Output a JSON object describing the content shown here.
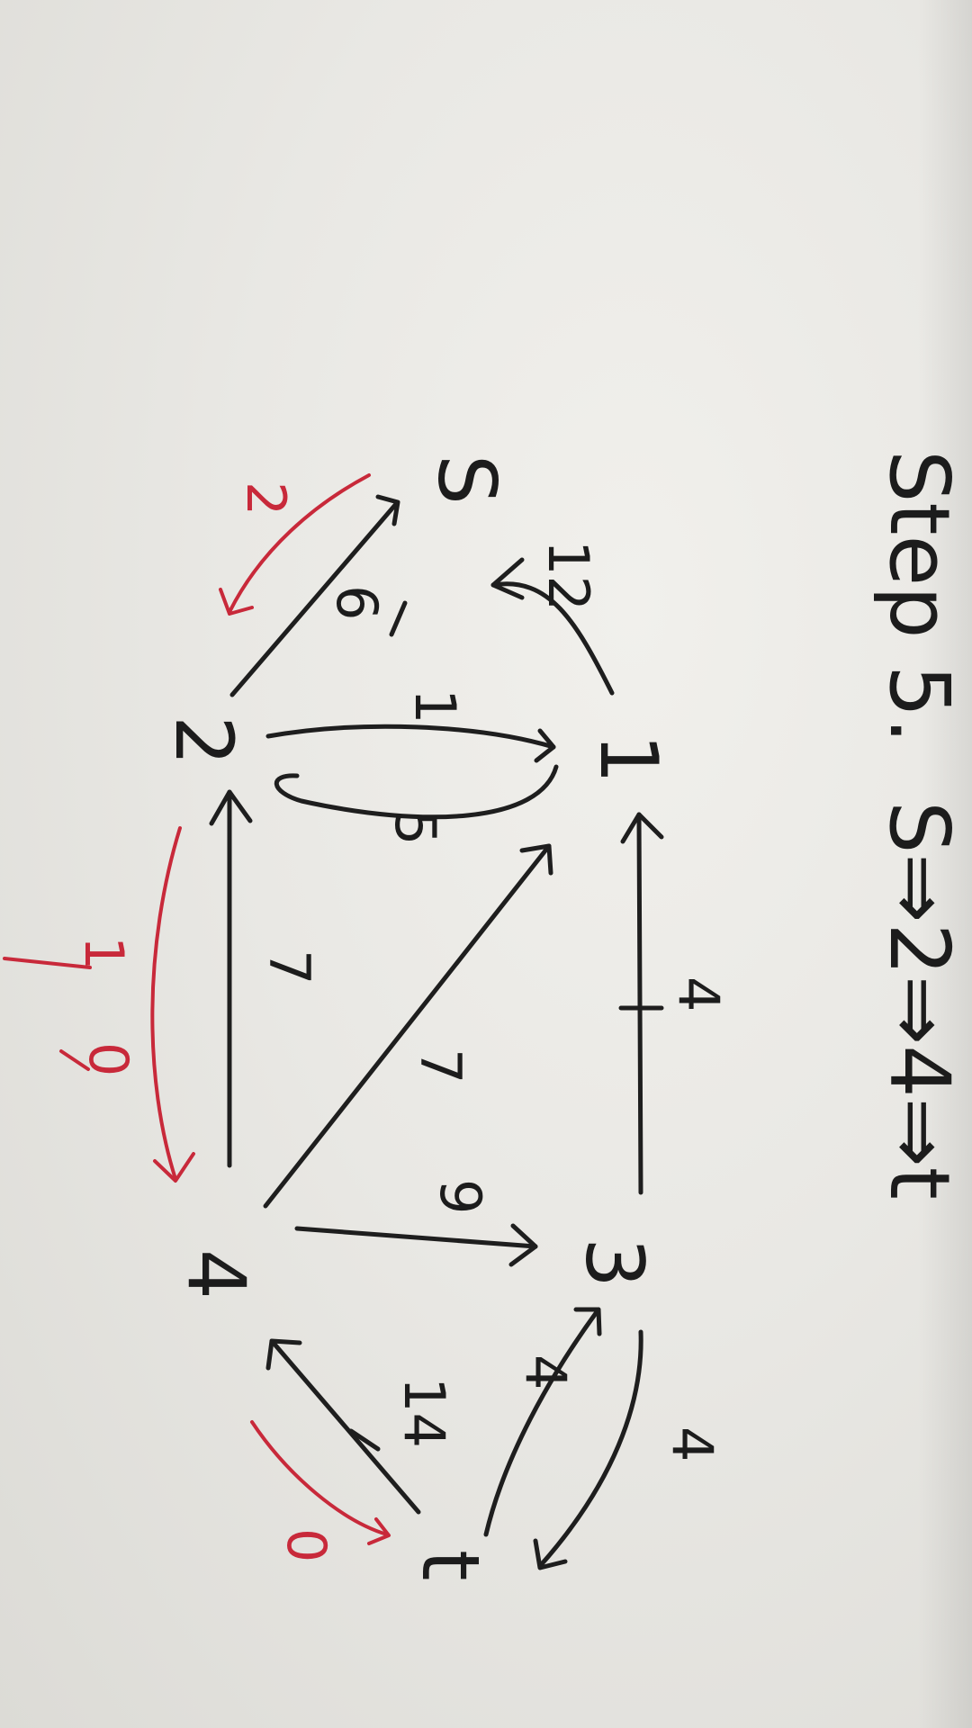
{
  "heading": {
    "step_label": "Step 5.",
    "path": "S⇒2⇒4⇒t"
  },
  "nodes": {
    "s": "S",
    "n1": "1",
    "n2": "2",
    "n3": "3",
    "n4": "4",
    "t": "t"
  },
  "edge_weights": {
    "s_1": "12",
    "s_2": "6",
    "n2_1_upper": "1",
    "n1_2_lower": "5",
    "n1_3": "4",
    "n2_4": "7",
    "n1_4_diagonal": "7",
    "n4_3": "9",
    "n3_t_upper": "4",
    "n3_t_lower": "4",
    "n4_t": "14"
  },
  "flow_annotations": {
    "s_2": "2",
    "n2_4": "1",
    "n2_4_crossed": "0",
    "n4_t": "0"
  },
  "colors": {
    "ink": "#1c1c1c",
    "red_ink": "#c8293a",
    "paper": "#ecebe7"
  }
}
